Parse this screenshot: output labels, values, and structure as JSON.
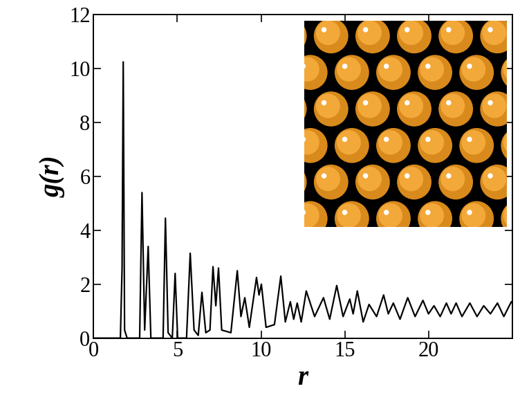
{
  "chart_data": {
    "type": "line",
    "x_label": "r",
    "y_label": "g(r)",
    "color": "#000000",
    "x": [
      0,
      1.6,
      1.7,
      1.77,
      1.85,
      2.0,
      2.75,
      2.89,
      3.05,
      3.26,
      3.42,
      4.15,
      4.29,
      4.45,
      4.7,
      4.87,
      5.02,
      5.55,
      5.77,
      6.0,
      6.25,
      6.47,
      6.7,
      6.95,
      7.13,
      7.3,
      7.46,
      7.65,
      8.2,
      8.58,
      8.8,
      9.03,
      9.3,
      9.73,
      9.88,
      10.02,
      10.3,
      10.8,
      11.18,
      11.45,
      11.75,
      11.95,
      12.16,
      12.4,
      12.7,
      13.2,
      13.73,
      14.1,
      14.52,
      14.9,
      15.3,
      15.5,
      15.75,
      16.1,
      16.45,
      16.9,
      17.32,
      17.6,
      17.9,
      18.3,
      18.76,
      19.2,
      19.67,
      20.0,
      20.33,
      20.7,
      21.07,
      21.35,
      21.65,
      22.0,
      22.47,
      22.9,
      23.3,
      23.7,
      24.12,
      24.5,
      24.95,
      25.0
    ],
    "values": [
      0,
      0,
      2.6,
      10.25,
      0.3,
      0,
      0,
      5.4,
      0.3,
      3.4,
      0,
      0,
      4.45,
      0.2,
      0,
      2.4,
      0,
      0,
      3.15,
      0.3,
      0.1,
      1.7,
      0.2,
      0.3,
      2.65,
      1.2,
      2.6,
      0.3,
      0.2,
      2.5,
      0.8,
      1.5,
      0.4,
      2.25,
      1.6,
      2.0,
      0.4,
      0.5,
      2.3,
      0.6,
      1.35,
      0.7,
      1.3,
      0.6,
      1.75,
      0.8,
      1.5,
      0.7,
      1.95,
      0.8,
      1.45,
      0.9,
      1.75,
      0.6,
      1.25,
      0.8,
      1.6,
      0.9,
      1.3,
      0.7,
      1.5,
      0.8,
      1.4,
      0.9,
      1.2,
      0.8,
      1.3,
      0.9,
      1.3,
      0.8,
      1.3,
      0.8,
      1.2,
      0.9,
      1.3,
      0.8,
      1.35,
      1.3
    ],
    "xlim": [
      0,
      25
    ],
    "xticks": [
      0,
      5,
      10,
      15,
      20
    ],
    "ylim": [
      0,
      12
    ],
    "yticks": [
      0,
      2,
      4,
      6,
      8,
      10,
      12
    ]
  }
}
